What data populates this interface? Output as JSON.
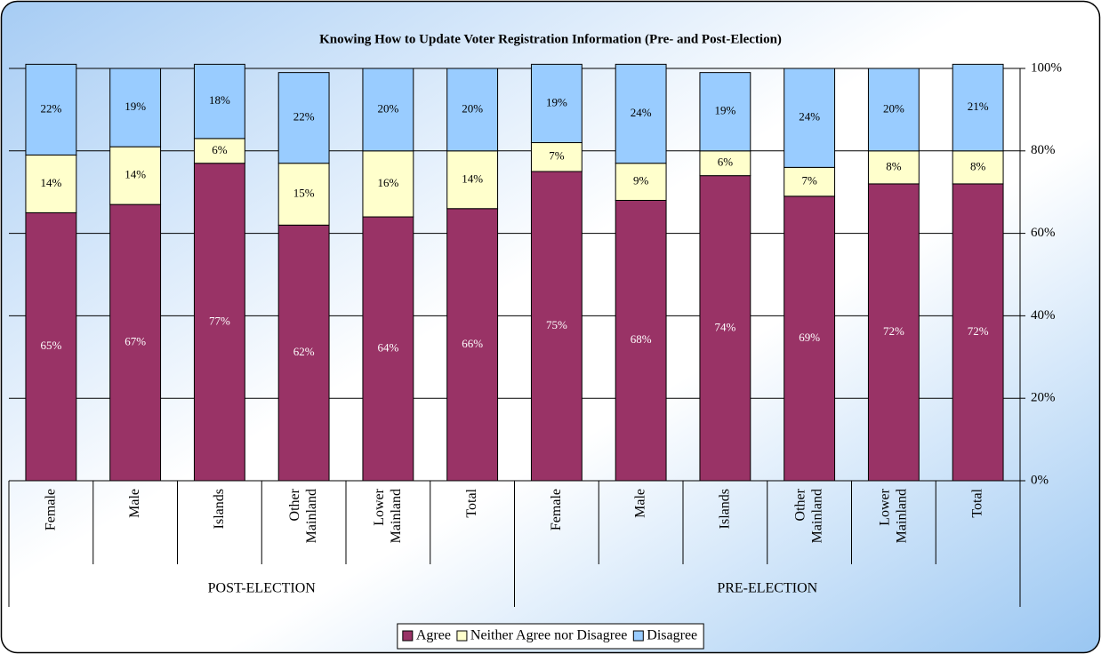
{
  "chart_data": {
    "type": "stacked_bar",
    "title": "Knowing How to Update Voter Registration Information (Pre- and Post-Election)",
    "groups": [
      {
        "name": "POST-ELECTION",
        "categories": [
          "Female",
          "Male",
          "Islands",
          "Other Mainland",
          "Lower Mainland",
          "Total"
        ]
      },
      {
        "name": "PRE-ELECTION",
        "categories": [
          "Female",
          "Male",
          "Islands",
          "Other Mainland",
          "Lower Mainland",
          "Total"
        ]
      }
    ],
    "series": [
      {
        "name": "Agree",
        "color": "#993366",
        "values": [
          65,
          67,
          77,
          62,
          64,
          66,
          75,
          68,
          74,
          69,
          72,
          72
        ],
        "value_labels": [
          "65%",
          "67%",
          "77%",
          "62%",
          "64%",
          "66%",
          "75%",
          "68%",
          "74%",
          "69%",
          "72%",
          "72%"
        ]
      },
      {
        "name": "Neither Agree nor Disagree",
        "color": "#ffffcc",
        "values": [
          14,
          14,
          6,
          15,
          16,
          14,
          7,
          9,
          6,
          7,
          8,
          8
        ],
        "value_labels": [
          "14%",
          "14%",
          "6%",
          "15%",
          "16%",
          "14%",
          "7%",
          "9%",
          "6%",
          "7%",
          "8%",
          "8%"
        ]
      },
      {
        "name": "Disagree",
        "color": "#99ccff",
        "values": [
          22,
          19,
          18,
          22,
          20,
          20,
          19,
          24,
          19,
          24,
          20,
          21
        ],
        "value_labels": [
          "22%",
          "19%",
          "18%",
          "22%",
          "20%",
          "20%",
          "19%",
          "24%",
          "19%",
          "24%",
          "20%",
          "21%"
        ]
      }
    ],
    "ylim": [
      0,
      100
    ],
    "yticks": [
      {
        "value": 0,
        "label": "0%"
      },
      {
        "value": 20,
        "label": "20%"
      },
      {
        "value": 40,
        "label": "40%"
      },
      {
        "value": 60,
        "label": "60%"
      },
      {
        "value": 80,
        "label": "80%"
      },
      {
        "value": 100,
        "label": "100%"
      }
    ],
    "grid": true,
    "legend": "bottom"
  }
}
